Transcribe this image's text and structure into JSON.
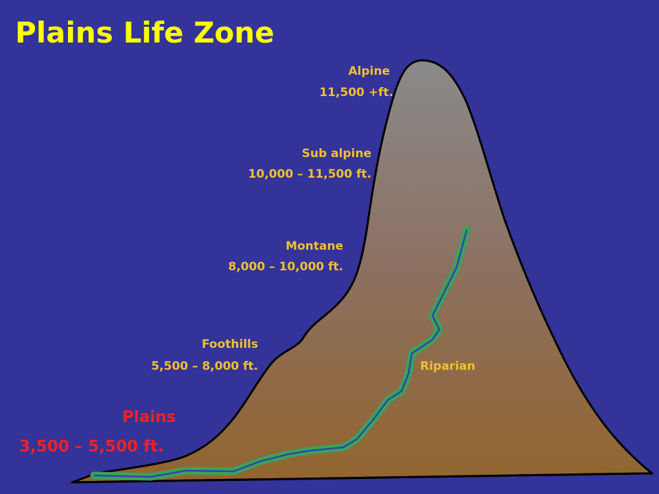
{
  "title": "Plains Life Zone",
  "zones": [
    {
      "name": "Alpine",
      "range": "11,500 +ft."
    },
    {
      "name": "Sub alpine",
      "range": "10,000 – 11,500 ft."
    },
    {
      "name": "Montane",
      "range": "8,000 – 10,000 ft."
    },
    {
      "name": "Foothills",
      "range": "5,500 – 8,000 ft."
    }
  ],
  "riparian": "Riparian",
  "plains": {
    "name": "Plains",
    "range": "3,500 – 5,500 ft."
  }
}
